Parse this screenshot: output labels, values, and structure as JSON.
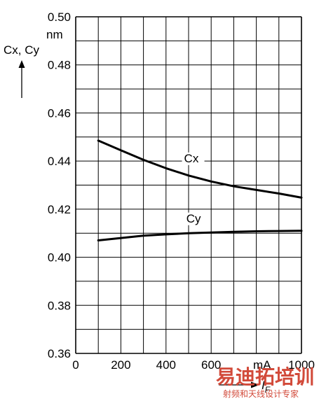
{
  "chart_data": {
    "type": "line",
    "title": "",
    "xlabel": "I_F",
    "xlabel_main": "I",
    "xlabel_sub": "F",
    "xunit": "mA",
    "ylabel": "Cx, Cy",
    "yunit": "nm",
    "xlim": [
      0,
      1000
    ],
    "ylim": [
      0.36,
      0.5
    ],
    "xticks": [
      0,
      200,
      400,
      600,
      1000
    ],
    "xtick_labels": [
      "0",
      "200",
      "400",
      "600",
      "1000"
    ],
    "yticks": [
      0.36,
      0.38,
      0.4,
      0.42,
      0.44,
      0.46,
      0.48,
      0.5
    ],
    "ytick_labels": [
      "0.36",
      "0.38",
      "0.40",
      "0.42",
      "0.44",
      "0.46",
      "0.48",
      "0.50"
    ],
    "grid": true,
    "series": [
      {
        "name": "Cx",
        "x": [
          100,
          200,
          300,
          400,
          500,
          600,
          700,
          800,
          900,
          1000
        ],
        "y": [
          0.4485,
          0.4445,
          0.4405,
          0.437,
          0.434,
          0.4315,
          0.4295,
          0.428,
          0.4265,
          0.4248
        ],
        "label_at": [
          480,
          0.4395
        ]
      },
      {
        "name": "Cy",
        "x": [
          100,
          200,
          300,
          400,
          500,
          600,
          700,
          800,
          900,
          1000
        ],
        "y": [
          0.407,
          0.408,
          0.409,
          0.4095,
          0.41,
          0.4103,
          0.4106,
          0.4108,
          0.4109,
          0.411
        ],
        "label_at": [
          490,
          0.4145
        ]
      }
    ]
  },
  "watermark": {
    "main": "易迪拓培训",
    "sub": "射频和天线设计专家"
  },
  "colors": {
    "line": "#000000",
    "grid": "#000000",
    "watermark": "#d24a3a"
  }
}
